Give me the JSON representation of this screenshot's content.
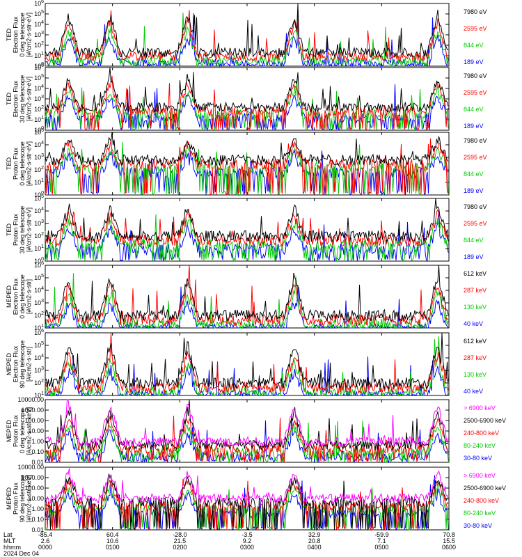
{
  "chart_data": {
    "type": "line",
    "x_time_range": [
      "0000",
      "0600"
    ],
    "panels": [
      {
        "ylabel": [
          "TED",
          "Electron Flux",
          "0 deg telescope",
          "[#/cm2-s-str-eV]"
        ],
        "log": true,
        "ylim_exp": [
          0,
          6
        ],
        "yticks": [
          "10^0",
          "10^1",
          "10^2",
          "10^3",
          "10^4",
          "10^5",
          "10^6"
        ],
        "legend": [
          {
            "name": "7980 eV",
            "color": "#000000"
          },
          {
            "name": "2595 eV",
            "color": "#ff0000"
          },
          {
            "name": "844 eV",
            "color": "#00cc00"
          },
          {
            "name": "189 eV",
            "color": "#0000ff"
          }
        ],
        "baseline_exp": 1.3,
        "floor_series": 2
      },
      {
        "ylabel": [
          "TED",
          "Electron Flux",
          "30 deg telescope",
          "[#/cm2-s-str-eV]"
        ],
        "log": true,
        "ylim_exp": [
          0,
          6
        ],
        "yticks": [
          "10^0",
          "10^1",
          "10^2",
          "10^3",
          "10^4",
          "10^5",
          "10^6"
        ],
        "legend": [
          {
            "name": "7980 eV",
            "color": "#000000"
          },
          {
            "name": "2595 eV",
            "color": "#ff0000"
          },
          {
            "name": "844 eV",
            "color": "#00cc00"
          },
          {
            "name": "189 eV",
            "color": "#0000ff"
          }
        ],
        "baseline_exp": 2.2,
        "floor_series": 3
      },
      {
        "ylabel": [
          "TED",
          "Proton Flux",
          "0 deg telescope",
          "[#/cm2-s-str-eV]"
        ],
        "log": true,
        "ylim_exp": [
          0,
          5
        ],
        "yticks": [
          "10^0",
          "10^1",
          "10^2",
          "10^3",
          "10^4",
          "10^5"
        ],
        "legend": [
          {
            "name": "7980 eV",
            "color": "#000000"
          },
          {
            "name": "2595 eV",
            "color": "#ff0000"
          },
          {
            "name": "844 eV",
            "color": "#00cc00"
          },
          {
            "name": "189 eV",
            "color": "#0000ff"
          }
        ],
        "baseline_exp": 2.8,
        "floor_series": 3
      },
      {
        "ylabel": [
          "TED",
          "Proton Flux",
          "30 deg telescope",
          "[#/cm2-s-str-eV]"
        ],
        "log": true,
        "ylim_exp": [
          0,
          5
        ],
        "yticks": [
          "10^0",
          "10^1",
          "10^2",
          "10^3",
          "10^4",
          "10^5"
        ],
        "legend": [
          {
            "name": "7980 eV",
            "color": "#000000"
          },
          {
            "name": "2595 eV",
            "color": "#ff0000"
          },
          {
            "name": "844 eV",
            "color": "#00cc00"
          },
          {
            "name": "189 eV",
            "color": "#0000ff"
          }
        ],
        "baseline_exp": 2.0,
        "floor_series": 2
      },
      {
        "ylabel": [
          "MEPED",
          "Electron Flux",
          "0 deg telescope",
          "[#/cm2-s-str]"
        ],
        "log": true,
        "ylim_exp": [
          1,
          6
        ],
        "yticks": [
          "10^1",
          "10^2",
          "10^3",
          "10^4",
          "10^5",
          "10^6"
        ],
        "legend": [
          {
            "name": "612 keV",
            "color": "#000000"
          },
          {
            "name": "287 keV",
            "color": "#ff0000"
          },
          {
            "name": "130 keV",
            "color": "#00cc00"
          },
          {
            "name": "40 keV",
            "color": "#0000ff"
          }
        ],
        "baseline_exp": 2.0,
        "floor_series": 2
      },
      {
        "ylabel": [
          "MEPED",
          "Electron Flux",
          "90 deg telescope",
          "[#/cm2-s-str]"
        ],
        "log": true,
        "ylim_exp": [
          1,
          6
        ],
        "yticks": [
          "10^1",
          "10^2",
          "10^3",
          "10^4",
          "10^5",
          "10^6"
        ],
        "legend": [
          {
            "name": "612 keV",
            "color": "#000000"
          },
          {
            "name": "287 keV",
            "color": "#ff0000"
          },
          {
            "name": "130 keV",
            "color": "#00cc00"
          },
          {
            "name": "40 keV",
            "color": "#0000ff"
          }
        ],
        "baseline_exp": 2.0,
        "floor_series": 2
      },
      {
        "ylabel": [
          "MEPED",
          "Proton Flux",
          "0 deg telescope",
          "[#/cm2-s-str-keV]"
        ],
        "log": true,
        "ylim_exp": [
          -2,
          4
        ],
        "yticks": [
          "0.01",
          "0.10",
          "1.00",
          "10.00",
          "100.00",
          "1000.00",
          "10000.00"
        ],
        "legend": [
          {
            "name": "> 6900 keV",
            "color": "#ff00ff"
          },
          {
            "name": "2500-6900 keV",
            "color": "#000000"
          },
          {
            "name": "240-800 keV",
            "color": "#ff0000"
          },
          {
            "name": "80-240 keV",
            "color": "#00cc00"
          },
          {
            "name": "30-80 keV",
            "color": "#0000ff"
          }
        ],
        "baseline_exp": 0.0,
        "floor_series": 3
      },
      {
        "ylabel": [
          "MEPED",
          "Proton Flux",
          "90 deg telescope",
          "[#/cm2-s-str-keV]"
        ],
        "log": true,
        "ylim_exp": [
          -2,
          4
        ],
        "yticks": [
          "0.01",
          "0.10",
          "1.00",
          "10.00",
          "100.00",
          "1000.00",
          "10000.00"
        ],
        "legend": [
          {
            "name": "> 6900 keV",
            "color": "#ff00ff"
          },
          {
            "name": "2500-6900 keV",
            "color": "#000000"
          },
          {
            "name": "240-800 keV",
            "color": "#ff0000"
          },
          {
            "name": "80-240 keV",
            "color": "#00cc00"
          },
          {
            "name": "30-80 keV",
            "color": "#0000ff"
          }
        ],
        "baseline_exp": 1.0,
        "floor_series": 4
      }
    ],
    "xaxis": {
      "row_labels": [
        "Lat",
        "MLT",
        "hhmm"
      ],
      "ticks": [
        {
          "lat": "-85.4",
          "mlt": "2.6",
          "hhmm": "0000"
        },
        {
          "lat": "60.4",
          "mlt": "10.6",
          "hhmm": "0100"
        },
        {
          "lat": "-28.0",
          "mlt": "21.5",
          "hhmm": "0200"
        },
        {
          "lat": "-3.5",
          "mlt": "9.2",
          "hhmm": "0300"
        },
        {
          "lat": "32.9",
          "mlt": "20.8",
          "hhmm": "0400"
        },
        {
          "lat": "-59.9",
          "mlt": "7.1",
          "hhmm": "0500"
        },
        {
          "lat": "70.8",
          "mlt": "15.5",
          "hhmm": "0600"
        }
      ],
      "date": "2024 Dec 04"
    },
    "radiation_belt_passes_hhmm": [
      "0021",
      "0058",
      "0207",
      "0342",
      "0550"
    ]
  }
}
